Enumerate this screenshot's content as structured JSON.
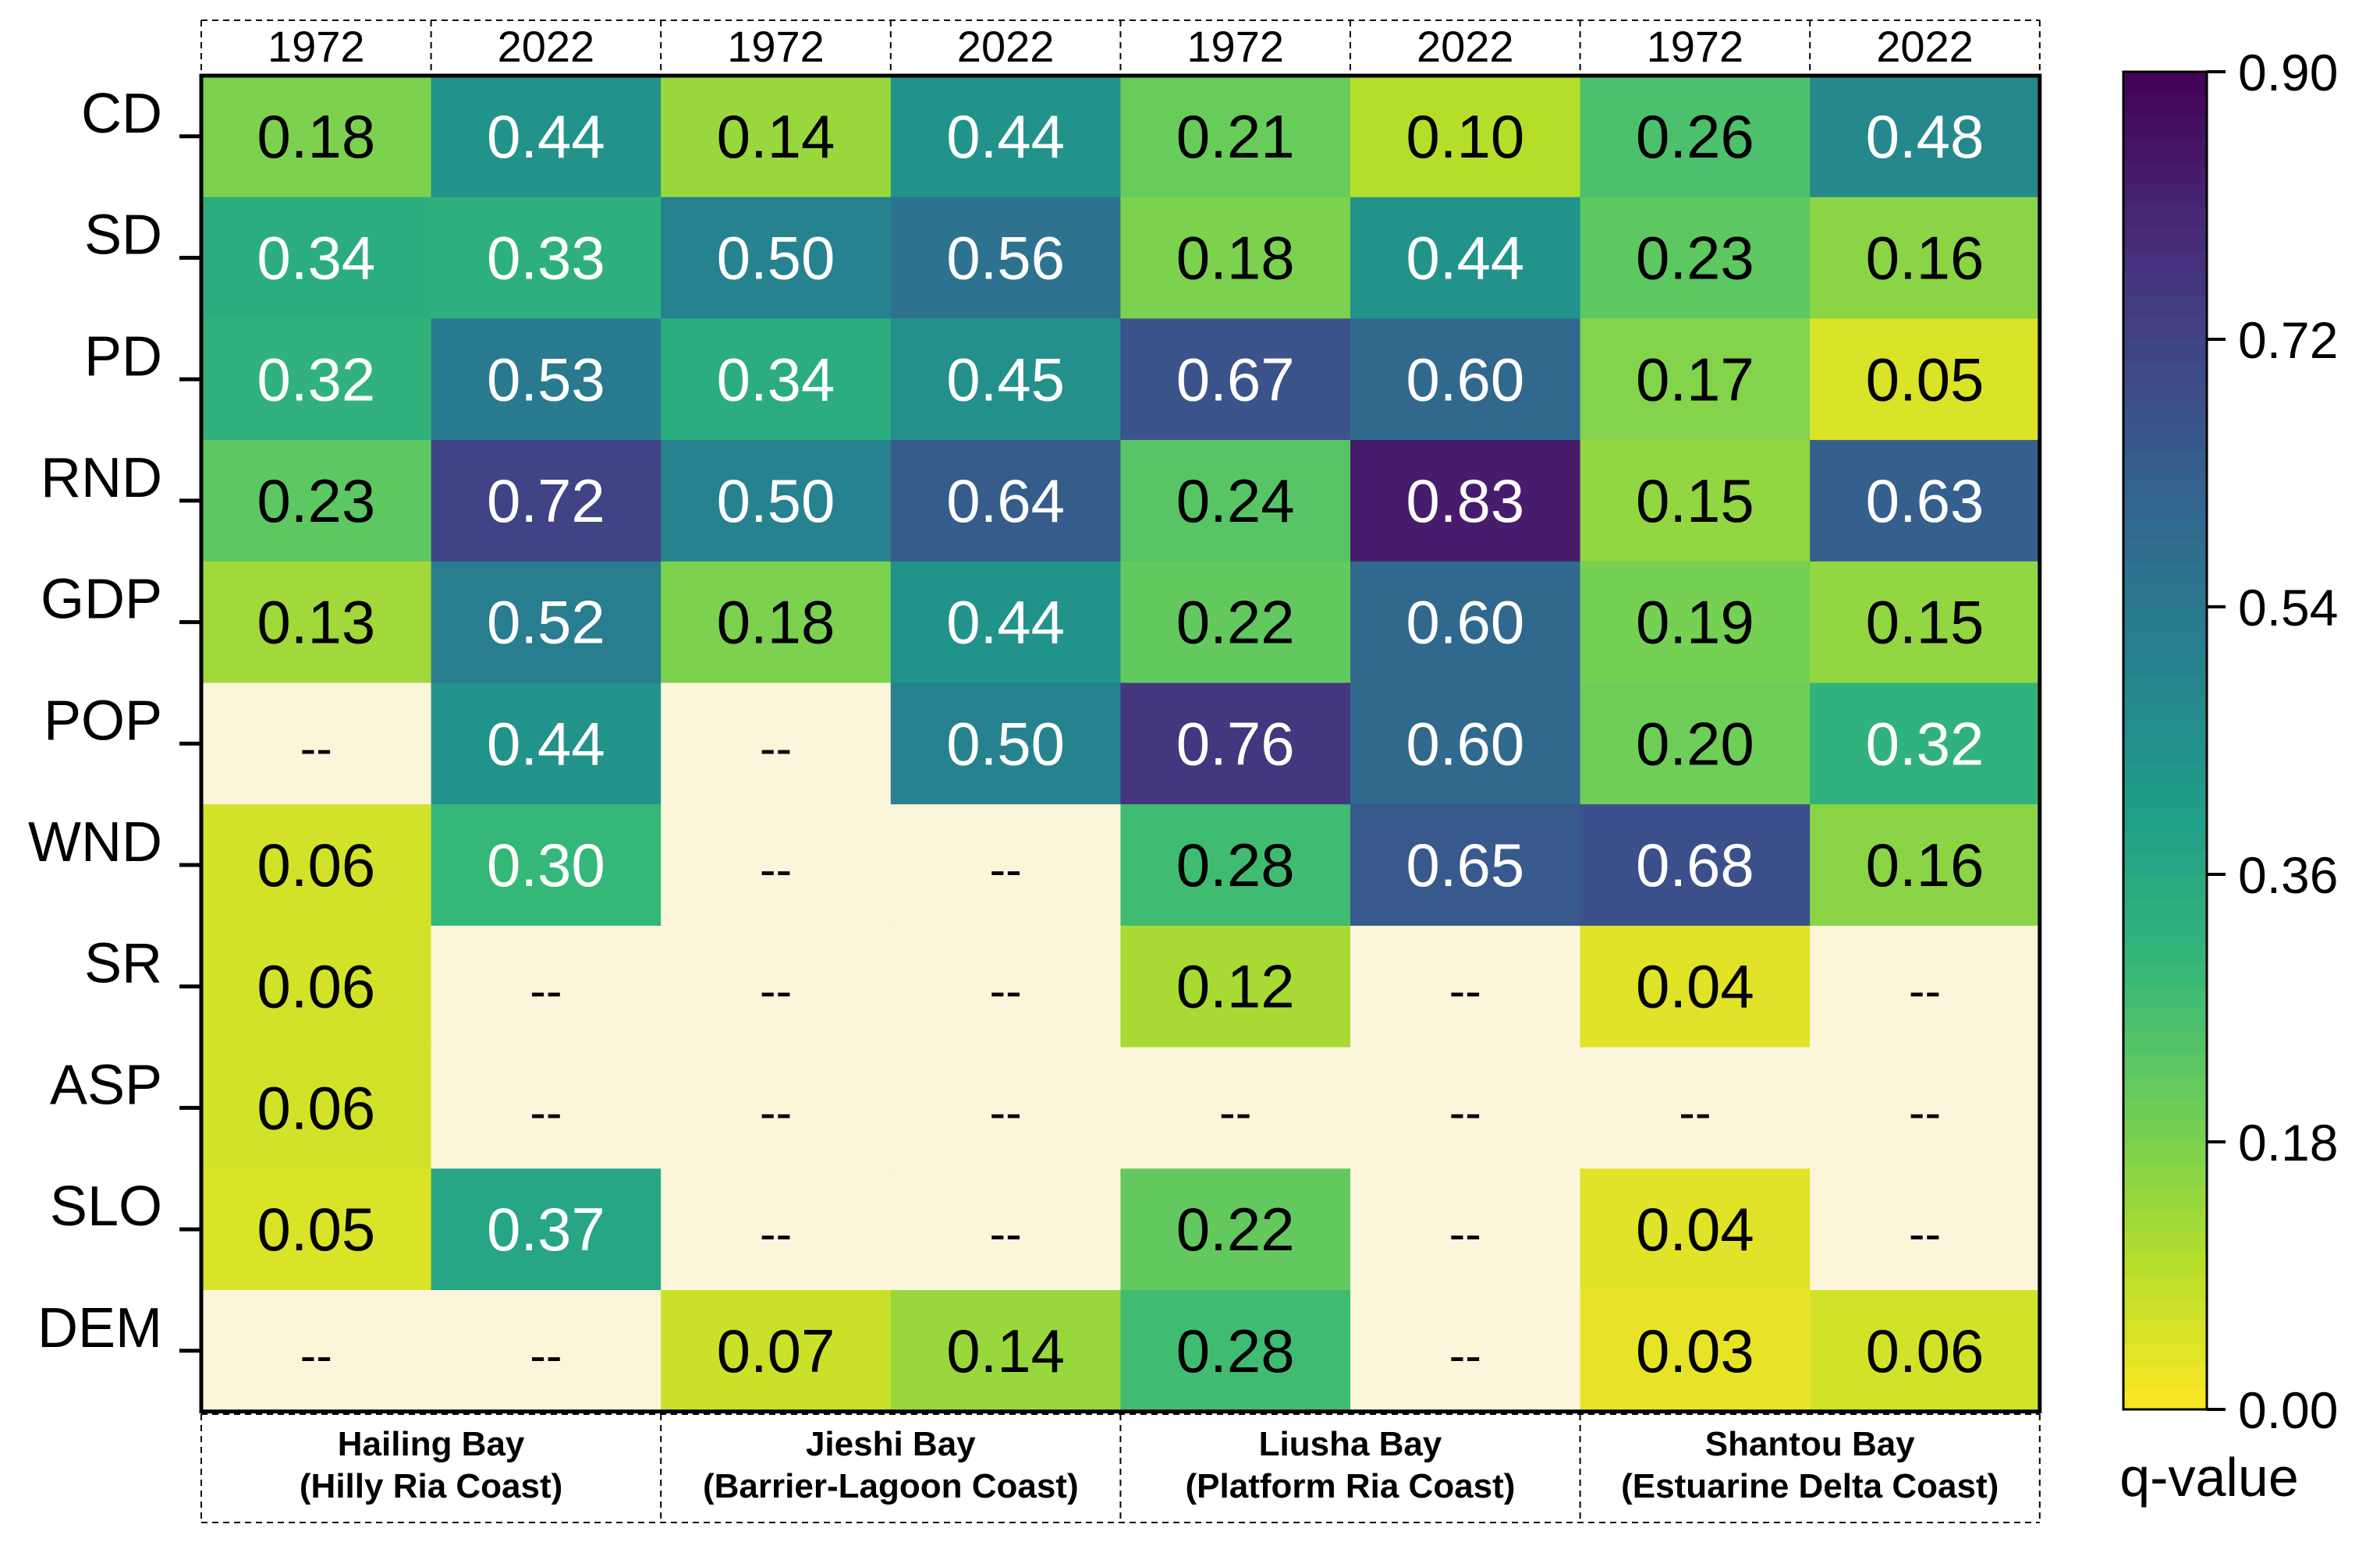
{
  "chart_data": {
    "type": "heatmap",
    "year_labels": [
      "1972",
      "2022",
      "1972",
      "2022",
      "1972",
      "2022",
      "1972",
      "2022"
    ],
    "regions": [
      {
        "name": "Hailing Bay",
        "coast": "(Hilly Ria Coast)"
      },
      {
        "name": "Jieshi Bay",
        "coast": "(Barrier-Lagoon Coast)"
      },
      {
        "name": "Liusha Bay",
        "coast": "(Platform Ria Coast)"
      },
      {
        "name": "Shantou Bay",
        "coast": "(Estuarine Delta Coast)"
      }
    ],
    "rows": [
      "CD",
      "SD",
      "PD",
      "RND",
      "GDP",
      "POP",
      "WND",
      "SR",
      "ASP",
      "SLO",
      "DEM"
    ],
    "missing_label": "--",
    "values": [
      [
        0.18,
        0.44,
        0.14,
        0.44,
        0.21,
        0.1,
        0.26,
        0.48
      ],
      [
        0.34,
        0.33,
        0.5,
        0.56,
        0.18,
        0.44,
        0.23,
        0.16
      ],
      [
        0.32,
        0.53,
        0.34,
        0.45,
        0.67,
        0.6,
        0.17,
        0.05
      ],
      [
        0.23,
        0.72,
        0.5,
        0.64,
        0.24,
        0.83,
        0.15,
        0.63
      ],
      [
        0.13,
        0.52,
        0.18,
        0.44,
        0.22,
        0.6,
        0.19,
        0.15
      ],
      [
        null,
        0.44,
        null,
        0.5,
        0.76,
        0.6,
        0.2,
        0.32
      ],
      [
        0.06,
        0.3,
        null,
        null,
        0.28,
        0.65,
        0.68,
        0.16
      ],
      [
        0.06,
        null,
        null,
        null,
        0.12,
        null,
        0.04,
        null
      ],
      [
        0.06,
        null,
        null,
        null,
        null,
        null,
        null,
        null
      ],
      [
        0.05,
        0.37,
        null,
        null,
        0.22,
        null,
        0.04,
        null
      ],
      [
        null,
        null,
        0.07,
        0.14,
        0.28,
        null,
        0.03,
        0.06
      ]
    ],
    "colorbar": {
      "label": "q-value",
      "range": [
        0,
        0.9
      ],
      "ticks": [
        "0.00",
        "0.18",
        "0.36",
        "0.54",
        "0.72",
        "0.90"
      ],
      "colormap": "viridis (reversed)",
      "missing_color": "#fbf5da"
    }
  }
}
